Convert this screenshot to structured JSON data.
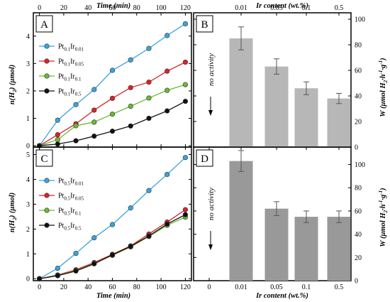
{
  "colors": {
    "blue": "#3ba3dc",
    "red": "#d9232a",
    "green": "#6ab935",
    "black": "#111111",
    "bar_top": "#b7b7b7",
    "bar_bottom": "#999999",
    "err": "#555555"
  },
  "x_top_title": "Time (min)",
  "x_bottom_title": "Time (min)",
  "x2_top_title": "Ir content (wt.%)",
  "x2_bottom_title": "Ir content (wt.%)",
  "panels": {
    "A": "A",
    "B": "B",
    "C": "C",
    "D": "D"
  },
  "no_activity": "no activity",
  "chart_data": [
    {
      "panel": "A",
      "type": "line",
      "ylabel": "n(H2) (μmol)",
      "xlim": [
        -5,
        125
      ],
      "ylim": [
        -0.05,
        4.85
      ],
      "xticks": [
        0,
        20,
        40,
        60,
        80,
        100,
        120
      ],
      "yticks": [
        0,
        1,
        2,
        3,
        4
      ],
      "series": [
        {
          "name": "Pt0.1Ir0.01",
          "label_main": "Pt",
          "sub1": "0.1",
          "mid": "Ir",
          "sub2": "0.01",
          "color": "#3ba3dc",
          "x": [
            0,
            15,
            30,
            45,
            60,
            75,
            90,
            105,
            120
          ],
          "y": [
            0,
            0.93,
            1.5,
            2.05,
            2.75,
            3.13,
            3.55,
            4.02,
            4.45
          ]
        },
        {
          "name": "Pt0.1Ir0.05",
          "label_main": "Pt",
          "sub1": "0.1",
          "mid": "Ir",
          "sub2": "0.05",
          "color": "#d9232a",
          "x": [
            0,
            15,
            30,
            45,
            60,
            75,
            90,
            105,
            120
          ],
          "y": [
            0,
            0.4,
            0.8,
            1.3,
            1.73,
            2.12,
            2.32,
            2.72,
            3.05
          ]
        },
        {
          "name": "Pt0.1Ir0.1",
          "label_main": "Pt",
          "sub1": "0.1",
          "mid": "Ir",
          "sub2": "0.1",
          "color": "#6ab935",
          "x": [
            0,
            15,
            30,
            45,
            60,
            75,
            90,
            105,
            120
          ],
          "y": [
            0,
            0.22,
            0.73,
            0.86,
            1.15,
            1.44,
            1.74,
            2.02,
            2.23
          ]
        },
        {
          "name": "Pt0.1Ir0.5",
          "label_main": "Pt",
          "sub1": "0.1",
          "mid": "Ir",
          "sub2": "0.5",
          "color": "#111111",
          "x": [
            0,
            15,
            30,
            45,
            60,
            75,
            90,
            105,
            120
          ],
          "y": [
            0,
            0.06,
            0.18,
            0.35,
            0.53,
            0.72,
            1.0,
            1.27,
            1.62
          ]
        }
      ]
    },
    {
      "panel": "B",
      "type": "bar",
      "ylabel": "W (μmol H2·h-1·g-1)",
      "categories": [
        "0.01",
        "0.05",
        "0.1",
        "0.5"
      ],
      "values": [
        85,
        63,
        46,
        38
      ],
      "errors": [
        9,
        6,
        5,
        4
      ],
      "ylim": [
        0,
        105
      ],
      "yticks": [
        0,
        20,
        40,
        60,
        80,
        100
      ]
    },
    {
      "panel": "C",
      "type": "line",
      "ylabel": "n(H2) (μmol)",
      "xlim": [
        -5,
        125
      ],
      "ylim": [
        -0.08,
        5.3
      ],
      "xticks": [
        0,
        20,
        40,
        60,
        80,
        100,
        120
      ],
      "yticks": [
        0,
        1,
        2,
        3,
        4,
        5
      ],
      "series": [
        {
          "name": "Pt0.5Ir0.01",
          "label_main": "Pt",
          "sub1": "0.5",
          "mid": "Ir",
          "sub2": "0.01",
          "color": "#3ba3dc",
          "x": [
            0,
            15,
            30,
            45,
            60,
            75,
            90,
            105,
            120
          ],
          "y": [
            0,
            0.42,
            1.02,
            1.65,
            2.18,
            2.85,
            3.55,
            4.2,
            4.88
          ]
        },
        {
          "name": "Pt0.5Ir0.05",
          "label_main": "Pt",
          "sub1": "0.5",
          "mid": "Ir",
          "sub2": "0.05",
          "color": "#d9232a",
          "x": [
            0,
            15,
            30,
            45,
            60,
            75,
            90,
            105,
            120
          ],
          "y": [
            0,
            0.15,
            0.36,
            0.65,
            0.98,
            1.32,
            1.8,
            2.28,
            2.78
          ]
        },
        {
          "name": "Pt0.5Ir0.1",
          "label_main": "Pt",
          "sub1": "0.5",
          "mid": "Ir",
          "sub2": "0.1",
          "color": "#6ab935",
          "x": [
            0,
            15,
            30,
            45,
            60,
            75,
            90,
            105,
            120
          ],
          "y": [
            0,
            0.13,
            0.33,
            0.62,
            0.94,
            1.28,
            1.7,
            2.15,
            2.48
          ]
        },
        {
          "name": "Pt0.5Ir0.5",
          "label_main": "Pt",
          "sub1": "0.5",
          "mid": "Ir",
          "sub2": "0.5",
          "color": "#111111",
          "x": [
            0,
            15,
            30,
            45,
            60,
            75,
            90,
            105,
            120
          ],
          "y": [
            0,
            0.12,
            0.31,
            0.6,
            0.96,
            1.3,
            1.72,
            2.2,
            2.58
          ]
        }
      ]
    },
    {
      "panel": "D",
      "type": "bar",
      "ylabel": "W (μmol H2·h-1·g-1)",
      "categories": [
        "0",
        "0.01",
        "0.05",
        "0.1",
        "0.5"
      ],
      "values": [
        0,
        103,
        62,
        55,
        55
      ],
      "errors": [
        0,
        9,
        6,
        5,
        5
      ],
      "ylim": [
        0,
        115
      ],
      "yticks": [
        0,
        20,
        40,
        60,
        80,
        100
      ]
    }
  ]
}
